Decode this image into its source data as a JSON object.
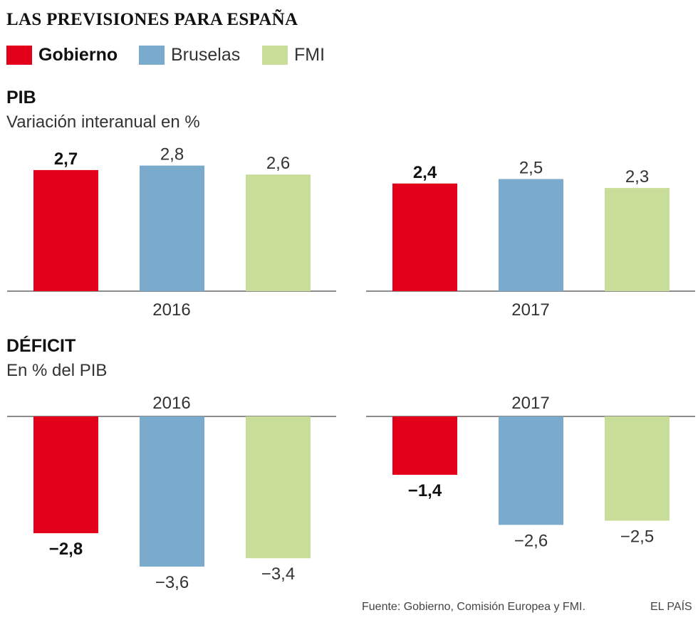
{
  "title": "LAS PREVISIONES PARA ESPAÑA",
  "legend": [
    {
      "label": "Gobierno",
      "color": "#e2001a",
      "bold": true
    },
    {
      "label": "Bruselas",
      "color": "#7aabcd",
      "bold": false
    },
    {
      "label": "FMI",
      "color": "#c8dd98",
      "bold": false
    }
  ],
  "sections": {
    "pib": {
      "title": "PIB",
      "subtitle": "Variación interanual en %"
    },
    "deficit": {
      "title": "DÉFICIT",
      "subtitle": "En % del PIB"
    }
  },
  "footer": {
    "source": "Fuente: Gobierno, Comisión Europea y FMI.",
    "brand": "EL PAÍS"
  },
  "chart_data": [
    {
      "type": "bar",
      "title": "PIB",
      "subtitle": "Variación interanual en %",
      "categories": [
        "2016",
        "2017"
      ],
      "series": [
        {
          "name": "Gobierno",
          "values": [
            2.7,
            2.4
          ],
          "labels": [
            "2,7",
            "2,4"
          ],
          "color": "#e2001a"
        },
        {
          "name": "Bruselas",
          "values": [
            2.8,
            2.5
          ],
          "labels": [
            "2,8",
            "2,5"
          ],
          "color": "#7aabcd"
        },
        {
          "name": "FMI",
          "values": [
            2.6,
            2.3
          ],
          "labels": [
            "2,6",
            "2,3"
          ],
          "color": "#c8dd98"
        }
      ],
      "ylim": [
        0,
        3
      ]
    },
    {
      "type": "bar",
      "title": "DÉFICIT",
      "subtitle": "En % del PIB",
      "categories": [
        "2016",
        "2017"
      ],
      "series": [
        {
          "name": "Gobierno",
          "values": [
            -2.8,
            -1.4
          ],
          "labels": [
            "−2,8",
            "−1,4"
          ],
          "color": "#e2001a"
        },
        {
          "name": "Bruselas",
          "values": [
            -3.6,
            -2.6
          ],
          "labels": [
            "−3,6",
            "−2,6"
          ],
          "color": "#7aabcd"
        },
        {
          "name": "FMI",
          "values": [
            -3.4,
            -2.5
          ],
          "labels": [
            "−3,4",
            "−2,5"
          ],
          "color": "#c8dd98"
        }
      ],
      "ylim": [
        -4,
        0
      ]
    }
  ]
}
